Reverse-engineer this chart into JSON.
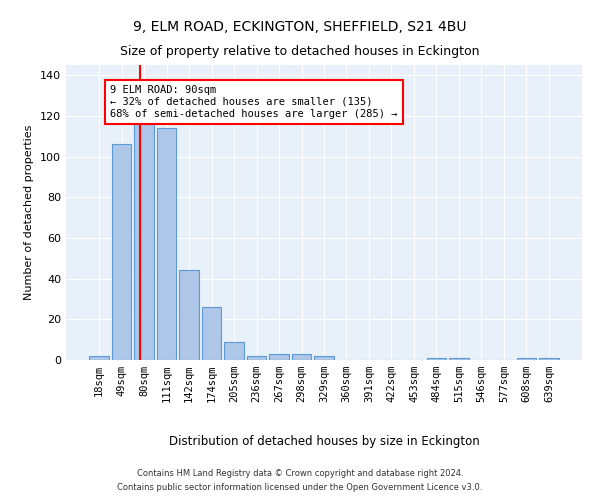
{
  "title": "9, ELM ROAD, ECKINGTON, SHEFFIELD, S21 4BU",
  "subtitle": "Size of property relative to detached houses in Eckington",
  "xlabel": "Distribution of detached houses by size in Eckington",
  "ylabel": "Number of detached properties",
  "categories": [
    "18sqm",
    "49sqm",
    "80sqm",
    "111sqm",
    "142sqm",
    "174sqm",
    "205sqm",
    "236sqm",
    "267sqm",
    "298sqm",
    "329sqm",
    "360sqm",
    "391sqm",
    "422sqm",
    "453sqm",
    "484sqm",
    "515sqm",
    "546sqm",
    "577sqm",
    "608sqm",
    "639sqm"
  ],
  "values": [
    2,
    106,
    116,
    114,
    44,
    26,
    9,
    2,
    3,
    3,
    2,
    0,
    0,
    0,
    0,
    1,
    1,
    0,
    0,
    1,
    1
  ],
  "bar_color": "#aec6e8",
  "bar_edge_color": "#5b9bd5",
  "vline_x_index": 2,
  "annotation_text": "9 ELM ROAD: 90sqm\n← 32% of detached houses are smaller (135)\n68% of semi-detached houses are larger (285) →",
  "annotation_box_color": "white",
  "annotation_box_edge_color": "red",
  "vline_color": "red",
  "ylim": [
    0,
    145
  ],
  "yticks": [
    0,
    20,
    40,
    60,
    80,
    100,
    120,
    140
  ],
  "background_color": "#e8f0fa",
  "grid_color": "white",
  "footer_line1": "Contains HM Land Registry data © Crown copyright and database right 2024.",
  "footer_line2": "Contains public sector information licensed under the Open Government Licence v3.0.",
  "title_fontsize": 10,
  "subtitle_fontsize": 9,
  "bar_width": 0.85
}
